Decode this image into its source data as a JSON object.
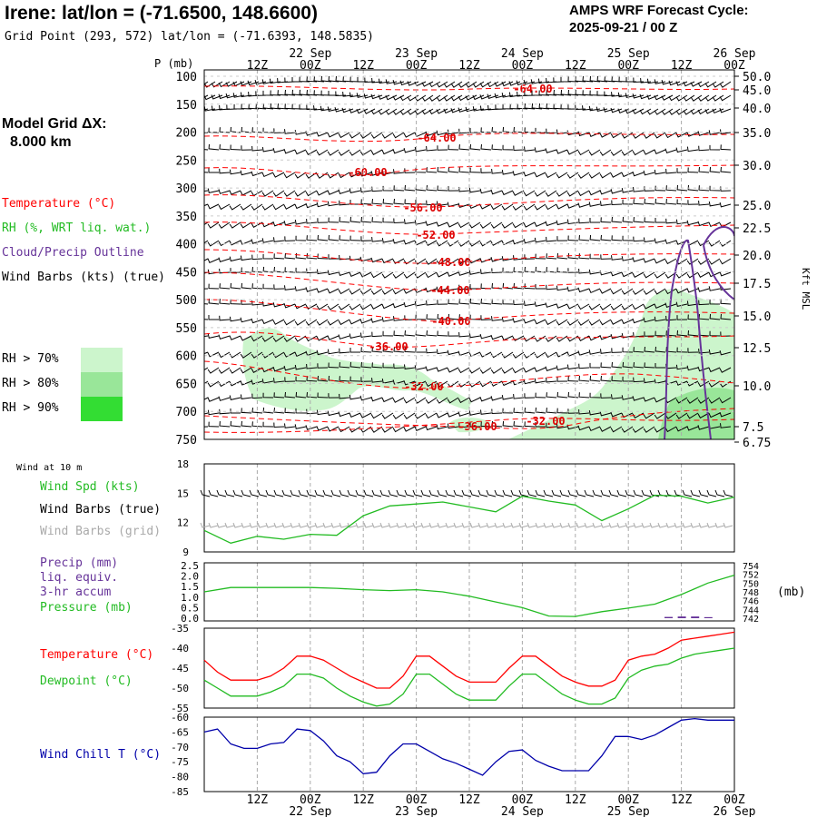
{
  "header": {
    "station_title": "Irene:  lat/lon = (-71.6500, 148.6600)",
    "grid_point": "Grid Point (293, 572) lat/lon = (-71.6393, 148.5835)",
    "cycle_line1": "AMPS WRF Forecast Cycle:",
    "cycle_line2": "2025-09-21 / 00  Z"
  },
  "left_legend": {
    "model_grid_label": "Model Grid ΔX:",
    "model_grid_value": "8.000 km",
    "temperature": "Temperature (°C)",
    "rh": "RH (%, WRT liq. wat.)",
    "cloud": "Cloud/Precip Outline",
    "wind_barbs": "Wind Barbs (kts) (true)",
    "rh70": "RH > 70%",
    "rh80": "RH > 80%",
    "rh90": "RH > 90%",
    "colors": {
      "rh70": "#ccf5cc",
      "rh80": "#99e699",
      "rh90": "#33dd33"
    }
  },
  "colors": {
    "temperature": "#ff0000",
    "dewpoint": "#22bb22",
    "cloud": "#663399",
    "wind_speed": "#22bb22",
    "wind_barbs_grid": "#aaaaaa",
    "wind_chill": "#0000aa",
    "precip_bar": "#663399"
  },
  "time_axis": {
    "top_hour_labels": [
      "12Z",
      "00Z",
      "12Z",
      "00Z",
      "12Z",
      "00Z",
      "12Z",
      "00Z",
      "12Z",
      "00Z"
    ],
    "top_day_labels": [
      "22 Sep",
      "23 Sep",
      "24 Sep",
      "25 Sep",
      "26 Sep"
    ],
    "bottom_hour_labels": [
      "12Z",
      "00Z",
      "12Z",
      "00Z",
      "12Z",
      "00Z",
      "12Z",
      "00Z",
      "12Z",
      "00Z"
    ],
    "bottom_day_labels": [
      "22 Sep",
      "23 Sep",
      "24 Sep",
      "25 Sep",
      "26 Sep"
    ]
  },
  "cross_section": {
    "p_label": "P (mb)",
    "right_axis_label": "Kft MSL",
    "pressure_ticks": [
      "100",
      "150",
      "200",
      "250",
      "300",
      "350",
      "400",
      "450",
      "500",
      "550",
      "600",
      "650",
      "700",
      "750"
    ],
    "height_ticks": [
      "50.0",
      "45.0",
      "40.0",
      "35.0",
      "30.0",
      "25.0",
      "22.5",
      "20.0",
      "17.5",
      "15.0",
      "12.5",
      "10.0",
      "7.5",
      "6.75"
    ],
    "temperature_labels": [
      "-64.00",
      "-64.00",
      "-60.00",
      "-56.00",
      "-52.00",
      "-48.00",
      "-44.00",
      "-40.00",
      "-36.00",
      "-32.00",
      "-36.00",
      "-32.00"
    ]
  },
  "wind_panel": {
    "panel_title": "Wind at 10 m",
    "spd_label": "Wind Spd (kts)",
    "true_label": "Wind Barbs (true)",
    "grid_label": "Wind Barbs (grid)",
    "y_ticks": [
      "18",
      "15",
      "12",
      "9"
    ]
  },
  "precip_panel": {
    "precip_label": "Precip (mm)",
    "liq_label": "liq. equiv.",
    "accum_label": "3-hr accum",
    "pressure_label": "Pressure (mb)",
    "unit_label": "(mb)",
    "left_ticks": [
      "2.5",
      "2.0",
      "1.5",
      "1.0",
      "0.5",
      "0.0"
    ],
    "right_ticks": [
      "754",
      "752",
      "750",
      "748",
      "746",
      "744",
      "742"
    ]
  },
  "temp_panel": {
    "temp_label": "Temperature (°C)",
    "dew_label": "Dewpoint (°C)",
    "y_ticks": [
      "-35",
      "-40",
      "-45",
      "-50",
      "-55"
    ]
  },
  "chill_panel": {
    "label": "Wind Chill T (°C)",
    "y_ticks": [
      "-60",
      "-65",
      "-70",
      "-75",
      "-80",
      "-85"
    ]
  },
  "chart_data": [
    {
      "type": "line",
      "title": "Wind at 10 m",
      "xlabel": "",
      "ylabel": "Wind Spd (kts)",
      "ylim": [
        9,
        18
      ],
      "x": [
        0,
        6,
        12,
        18,
        24,
        30,
        36,
        42,
        48,
        54,
        60,
        66,
        72,
        78,
        84,
        90,
        96,
        102,
        108,
        114,
        120
      ],
      "series": [
        {
          "name": "Wind Spd (kts)",
          "values": [
            11.2,
            9.9,
            10.6,
            10.3,
            10.8,
            10.7,
            12.7,
            13.7,
            13.9,
            14.1,
            13.6,
            13.1,
            14.7,
            14.2,
            13.8,
            12.2,
            13.4,
            14.8,
            14.7,
            14.0,
            14.6
          ]
        }
      ]
    },
    {
      "type": "line",
      "ylabel": "Pressure (mb)",
      "ylim": [
        742,
        754
      ],
      "x": [
        0,
        6,
        12,
        18,
        24,
        30,
        36,
        42,
        48,
        54,
        60,
        66,
        72,
        78,
        84,
        90,
        96,
        102,
        108,
        114,
        120
      ],
      "series": [
        {
          "name": "Pressure (mb)",
          "values": [
            748,
            749,
            749,
            749,
            749,
            748.8,
            748.5,
            748.3,
            748.5,
            748,
            747,
            745.7,
            744.4,
            742.5,
            742.4,
            743.5,
            744.3,
            745.2,
            747.4,
            750,
            751.8
          ]
        }
      ],
      "precip": {
        "name": "Precip (mm)",
        "x": [
          105,
          108,
          111,
          114
        ],
        "values": [
          0.06,
          0.08,
          0.08,
          0.05
        ]
      }
    },
    {
      "type": "line",
      "ylim": [
        -55,
        -35
      ],
      "x": [
        0,
        3,
        6,
        9,
        12,
        15,
        18,
        21,
        24,
        27,
        30,
        33,
        36,
        39,
        42,
        45,
        48,
        51,
        54,
        57,
        60,
        63,
        66,
        69,
        72,
        75,
        78,
        81,
        84,
        87,
        90,
        93,
        96,
        99,
        102,
        105,
        108,
        111,
        114,
        117,
        120
      ],
      "series": [
        {
          "name": "Temperature (°C)",
          "values": [
            -43,
            -46,
            -48,
            -48,
            -48,
            -47,
            -45,
            -42,
            -42,
            -43,
            -45,
            -47,
            -48.5,
            -50,
            -50,
            -47,
            -42,
            -42,
            -44.5,
            -47,
            -48.5,
            -48.5,
            -48.5,
            -45,
            -42,
            -42,
            -44.5,
            -47,
            -48.5,
            -49.5,
            -49.5,
            -48,
            -43,
            -42,
            -41.5,
            -40,
            -38,
            -37.5,
            -37,
            -36.5,
            -36
          ]
        },
        {
          "name": "Dewpoint (°C)",
          "values": [
            -48,
            -50,
            -52,
            -52,
            -52,
            -51,
            -49.5,
            -46.5,
            -46.5,
            -47.5,
            -50,
            -52,
            -53.5,
            -54.5,
            -54,
            -51.5,
            -46.5,
            -46.5,
            -49,
            -51.5,
            -53,
            -53,
            -53,
            -49.5,
            -46.5,
            -46.5,
            -49,
            -51.5,
            -53,
            -54,
            -54,
            -52.5,
            -47.5,
            -45.5,
            -44.5,
            -44,
            -42.5,
            -41.5,
            -41,
            -40.5,
            -40
          ]
        }
      ]
    },
    {
      "type": "line",
      "ylim": [
        -85,
        -60
      ],
      "x": [
        0,
        3,
        6,
        9,
        12,
        15,
        18,
        21,
        24,
        27,
        30,
        33,
        36,
        39,
        42,
        45,
        48,
        51,
        54,
        57,
        60,
        63,
        66,
        69,
        72,
        75,
        78,
        81,
        84,
        87,
        90,
        93,
        96,
        99,
        102,
        105,
        108,
        111,
        114,
        117,
        120
      ],
      "series": [
        {
          "name": "Wind Chill T (°C)",
          "values": [
            -65,
            -64,
            -69,
            -70.5,
            -70.5,
            -69,
            -68.5,
            -64,
            -64.5,
            -68,
            -73,
            -75,
            -79,
            -78.5,
            -73,
            -69,
            -69,
            -71.5,
            -74,
            -75.5,
            -77.5,
            -79.5,
            -75,
            -71.5,
            -71,
            -74.5,
            -76.5,
            -78,
            -78,
            -78,
            -73,
            -66.5,
            -66.5,
            -67.5,
            -66,
            -63.5,
            -61,
            -60.5,
            -61,
            -61,
            -61
          ]
        }
      ]
    }
  ]
}
